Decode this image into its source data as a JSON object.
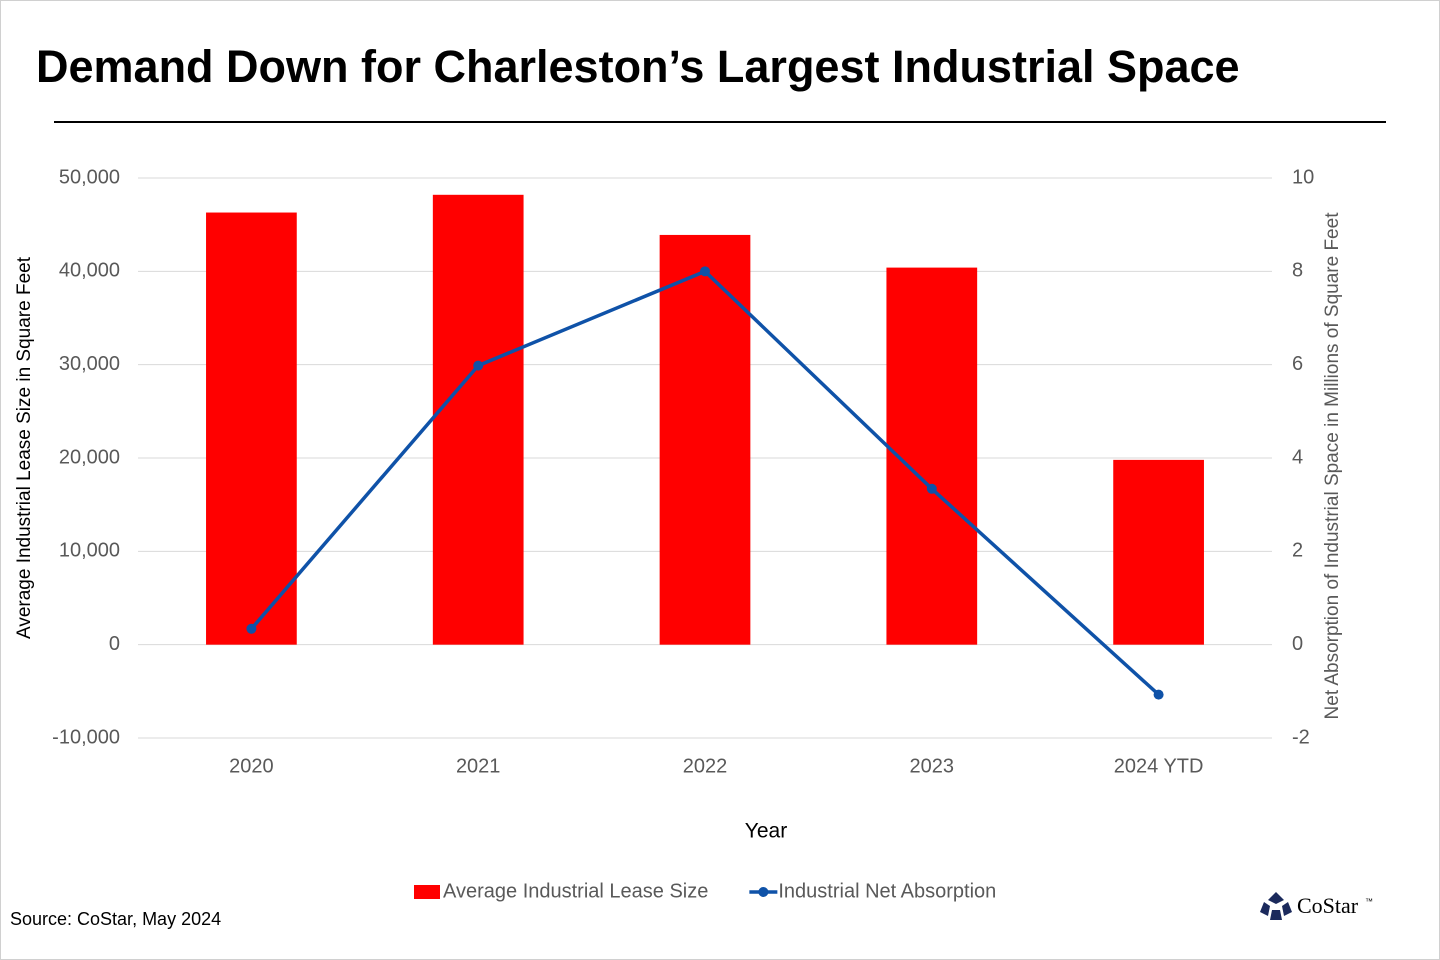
{
  "chart_data": {
    "type": "bar",
    "title": "Demand Down for Charleston’s Largest Industrial Space",
    "x_label": "Year",
    "y_label": "Average Industrial Lease Size  in Square Feet",
    "y2_label": "Net Absorption of Industrial Space in Millions of Square Feet",
    "categories": [
      "2020",
      "2021",
      "2022",
      "2023",
      "2024 YTD"
    ],
    "series": [
      {
        "name": "Average Industrial Lease Size",
        "type": "bar",
        "color": "#ff0000",
        "values": [
          46300,
          48200,
          43900,
          40400,
          19800
        ]
      },
      {
        "name": "Industrial Net Absorption",
        "type": "line",
        "axis": "y2",
        "color": "#0f52a8",
        "values": [
          0.34,
          5.98,
          8.0,
          3.34,
          -1.07
        ]
      }
    ],
    "ylim": [
      -10000,
      50000
    ],
    "yticks": [
      {
        "value": -10000,
        "label": "-10,000"
      },
      0,
      {
        "value": 10000,
        "label": "10,000"
      },
      {
        "value": 20000,
        "label": "20,000"
      },
      {
        "value": 30000,
        "label": "30,000"
      },
      {
        "value": 40000,
        "label": "40,000"
      },
      {
        "value": 50000,
        "label": "50,000"
      }
    ],
    "y2lim": [
      -2,
      10
    ],
    "y2ticks": [
      -2,
      0,
      2,
      4,
      6,
      8,
      10
    ],
    "grid": true,
    "legend": "bottom"
  },
  "source": "Source: CoStar, May 2024",
  "logo": "CoStar",
  "logo_mark": "™"
}
